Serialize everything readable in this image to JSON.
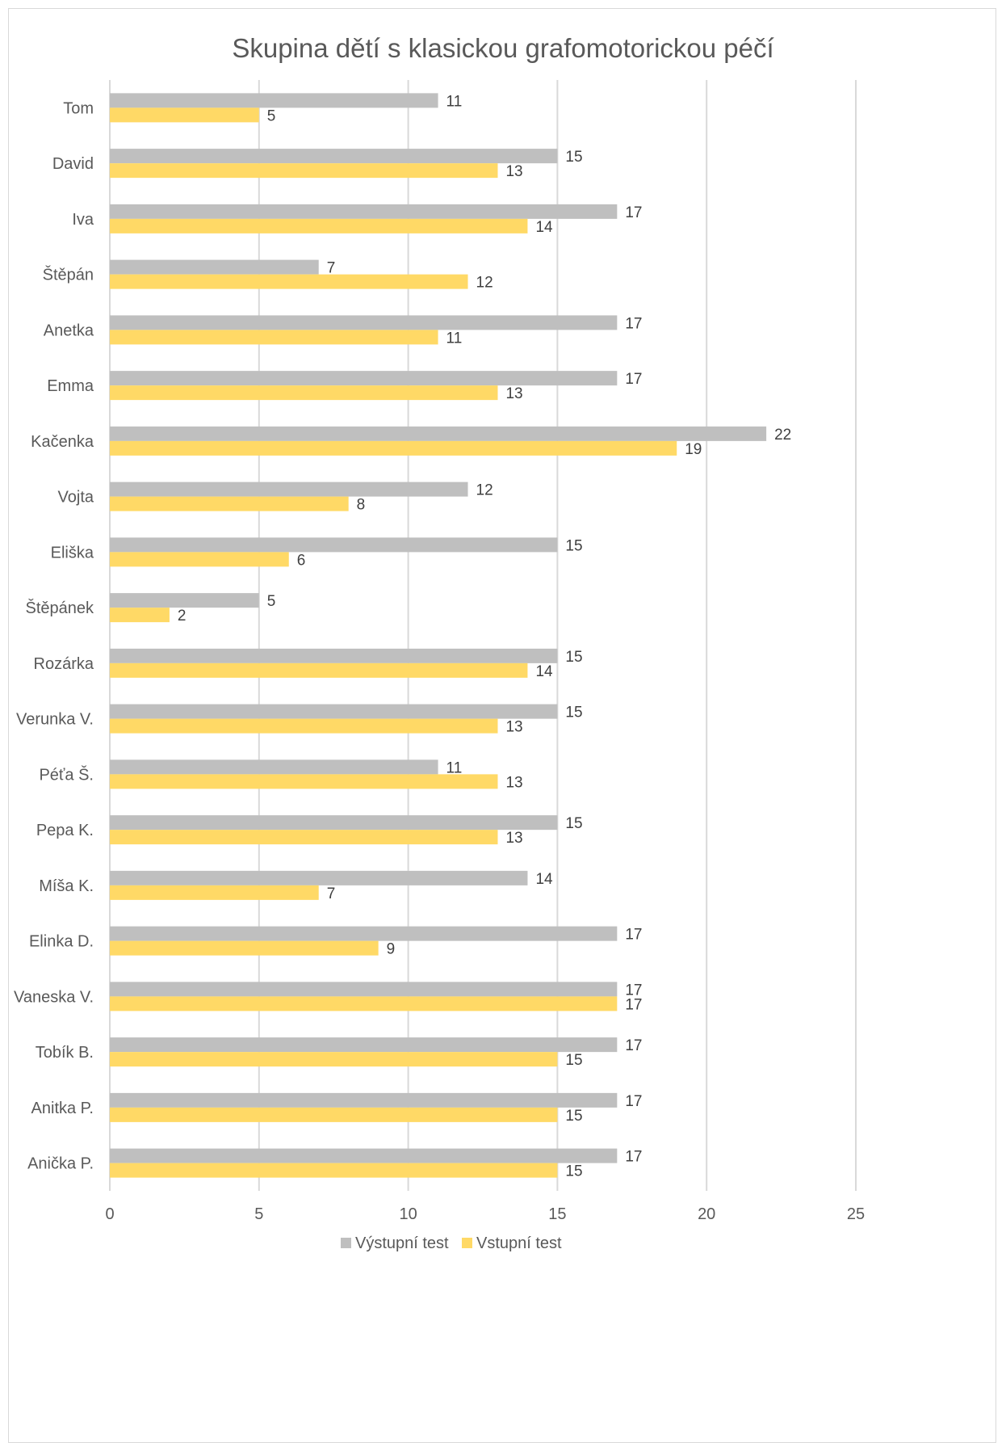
{
  "chart_data": {
    "type": "bar",
    "orientation": "horizontal",
    "title": "Skupina dětí s klasickou grafomotorickou péčí",
    "xlabel": "",
    "ylabel": "",
    "xlim": [
      0,
      25
    ],
    "x_ticks": [
      "0",
      "5",
      "10",
      "15",
      "20",
      "25"
    ],
    "grid": true,
    "legend_position": "bottom",
    "categories": [
      "Tom",
      "David",
      "Iva",
      "Štěpán",
      "Anetka",
      "Emma",
      "Kačenka",
      "Vojta",
      "Eliška",
      "Štěpánek",
      "Rozárka",
      "Verunka V.",
      "Péťa Š.",
      "Pepa K.",
      "Míša K.",
      "Elinka D.",
      "Vaneska V.",
      "Tobík B.",
      "Anitka P.",
      "Anička P."
    ],
    "series": [
      {
        "name": "Výstupní test",
        "color": "#bfbfbf",
        "values": [
          11,
          15,
          17,
          7,
          17,
          17,
          22,
          12,
          15,
          5,
          15,
          15,
          11,
          15,
          14,
          17,
          17,
          17,
          17,
          17
        ]
      },
      {
        "name": "Vstupní test",
        "color": "#ffd966",
        "values": [
          5,
          13,
          14,
          12,
          11,
          13,
          19,
          8,
          6,
          2,
          14,
          13,
          13,
          13,
          7,
          9,
          17,
          15,
          15,
          15
        ]
      }
    ]
  }
}
